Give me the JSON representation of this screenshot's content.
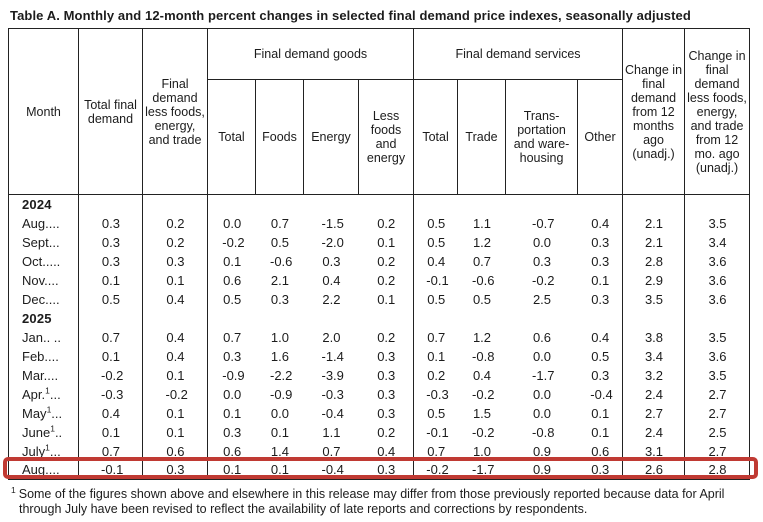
{
  "title": "Table A. Monthly and 12-month percent changes in selected final demand price indexes, seasonally adjusted",
  "highlight_color": "#c03a33",
  "table": {
    "header": {
      "month": "Month",
      "total_final_demand": "Total final demand",
      "fd_less_fet": "Final demand less foods, energy, and trade",
      "goods_group": "Final demand goods",
      "services_group": "Final demand services",
      "goods_cols": [
        "Total",
        "Foods",
        "Energy",
        "Less foods and energy"
      ],
      "services_cols": [
        "Total",
        "Trade",
        "Trans-portation and ware-housing",
        "Other"
      ],
      "chg_12mo": "Change in final demand from 12 months ago (unadj.)",
      "chg_less_12mo": "Change in final demand less foods, energy, and trade from 12 mo. ago (unadj.)"
    },
    "rows": [
      {
        "type": "year",
        "label": "2024"
      },
      {
        "type": "data",
        "m": "Aug",
        "sup": "",
        "d": "....",
        "values": [
          "0.3",
          "0.2",
          "0.0",
          "0.7",
          "-1.5",
          "0.2",
          "0.5",
          "1.1",
          "-0.7",
          "0.4",
          "2.1",
          "3.5"
        ]
      },
      {
        "type": "data",
        "m": "Sept",
        "sup": "",
        "d": "...",
        "values": [
          "0.3",
          "0.2",
          "-0.2",
          "0.5",
          "-2.0",
          "0.1",
          "0.5",
          "1.2",
          "0.0",
          "0.3",
          "2.1",
          "3.4"
        ]
      },
      {
        "type": "data",
        "m": "Oct",
        "sup": "",
        "d": ".....",
        "values": [
          "0.3",
          "0.3",
          "0.1",
          "-0.6",
          "0.3",
          "0.2",
          "0.4",
          "0.7",
          "0.3",
          "0.3",
          "2.8",
          "3.6"
        ]
      },
      {
        "type": "data",
        "m": "Nov",
        "sup": "",
        "d": "....",
        "values": [
          "0.1",
          "0.1",
          "0.6",
          "2.1",
          "0.4",
          "0.2",
          "-0.1",
          "-0.6",
          "-0.2",
          "0.1",
          "2.9",
          "3.6"
        ]
      },
      {
        "type": "data",
        "m": "Dec",
        "sup": "",
        "d": "....",
        "values": [
          "0.5",
          "0.4",
          "0.5",
          "0.3",
          "2.2",
          "0.1",
          "0.5",
          "0.5",
          "2.5",
          "0.3",
          "3.5",
          "3.6"
        ]
      },
      {
        "type": "year",
        "label": "2025"
      },
      {
        "type": "data",
        "m": "Jan",
        "sup": "",
        "d": ".. ..",
        "values": [
          "0.7",
          "0.4",
          "0.7",
          "1.0",
          "2.0",
          "0.2",
          "0.7",
          "1.2",
          "0.6",
          "0.4",
          "3.8",
          "3.5"
        ]
      },
      {
        "type": "data",
        "m": "Feb",
        "sup": "",
        "d": "....",
        "values": [
          "0.1",
          "0.4",
          "0.3",
          "1.6",
          "-1.4",
          "0.3",
          "0.1",
          "-0.8",
          "0.0",
          "0.5",
          "3.4",
          "3.6"
        ]
      },
      {
        "type": "data",
        "m": "Mar",
        "sup": "",
        "d": "....",
        "values": [
          "-0.2",
          "0.1",
          "-0.9",
          "-2.2",
          "-3.9",
          "0.3",
          "0.2",
          "0.4",
          "-1.7",
          "0.3",
          "3.2",
          "3.5"
        ]
      },
      {
        "type": "data",
        "m": "Apr.",
        "sup": "1",
        "d": "...",
        "values": [
          "-0.3",
          "-0.2",
          "0.0",
          "-0.9",
          "-0.3",
          "0.3",
          "-0.3",
          "-0.2",
          "0.0",
          "-0.4",
          "2.4",
          "2.7"
        ]
      },
      {
        "type": "data",
        "m": "May",
        "sup": "1",
        "d": "...",
        "values": [
          "0.4",
          "0.1",
          "0.1",
          "0.0",
          "-0.4",
          "0.3",
          "0.5",
          "1.5",
          "0.0",
          "0.1",
          "2.7",
          "2.7"
        ]
      },
      {
        "type": "data",
        "m": "June",
        "sup": "1",
        "d": "..",
        "values": [
          "0.1",
          "0.1",
          "0.3",
          "0.1",
          "1.1",
          "0.2",
          "-0.1",
          "-0.2",
          "-0.8",
          "0.1",
          "2.4",
          "2.5"
        ]
      },
      {
        "type": "data",
        "m": "July",
        "sup": "1",
        "d": "...",
        "values": [
          "0.7",
          "0.6",
          "0.6",
          "1.4",
          "0.7",
          "0.4",
          "0.7",
          "1.0",
          "0.9",
          "0.6",
          "3.1",
          "2.7"
        ]
      },
      {
        "type": "data",
        "m": "Aug",
        "sup": "",
        "d": "....",
        "highlight": true,
        "values": [
          "-0.1",
          "0.3",
          "0.1",
          "0.1",
          "-0.4",
          "0.3",
          "-0.2",
          "-1.7",
          "0.9",
          "0.3",
          "2.6",
          "2.8"
        ]
      }
    ]
  },
  "footnote": {
    "marker": "1",
    "text": "Some of the figures shown above and elsewhere in this release may differ from those previously reported because data for April through July have been revised to reflect the availability of late reports and corrections by respondents."
  }
}
